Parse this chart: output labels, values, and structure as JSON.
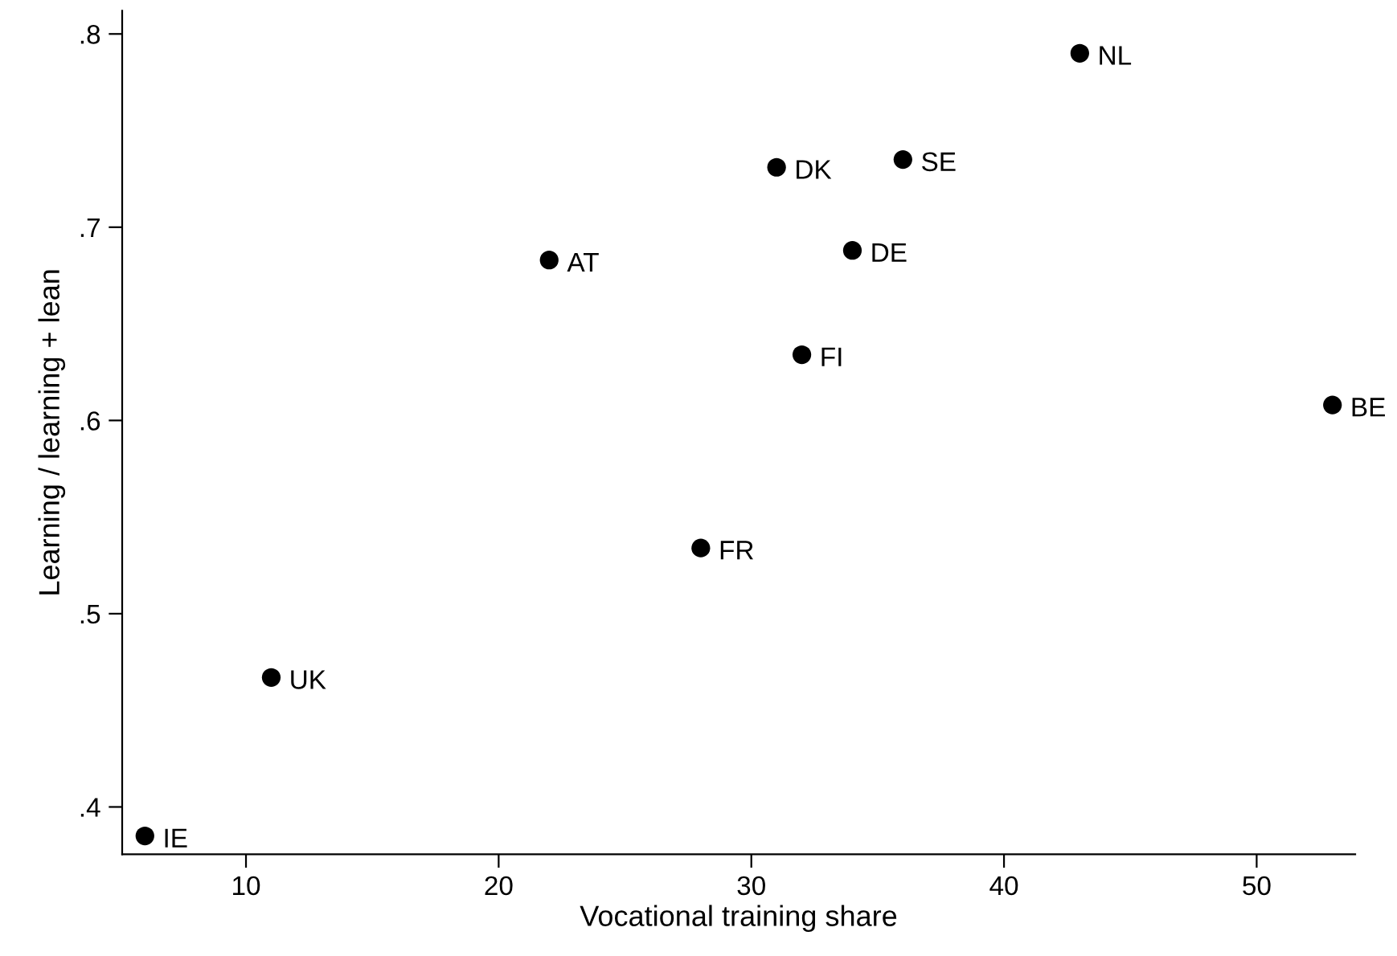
{
  "chart_data": {
    "type": "scatter",
    "xlabel": "Vocational training share",
    "ylabel": "Learning / learning + lean",
    "x": [
      6,
      11,
      22,
      31,
      32,
      34,
      36,
      43,
      53,
      28
    ],
    "values": [
      0.385,
      0.467,
      0.683,
      0.731,
      0.634,
      0.688,
      0.735,
      0.79,
      0.608,
      0.534
    ],
    "color": "#000000",
    "marker": "circle",
    "grid": false,
    "legend": false,
    "xlim": [
      5.1,
      53.9
    ],
    "xticks": [
      10,
      20,
      30,
      40,
      50
    ],
    "ylim": [
      0.3755,
      0.812
    ],
    "yticks": [
      {
        "value": 0.4,
        "label": ".4"
      },
      {
        "value": 0.5,
        "label": ".5"
      },
      {
        "value": 0.6,
        "label": ".6"
      },
      {
        "value": 0.7,
        "label": ".7"
      },
      {
        "value": 0.8,
        "label": ".8"
      }
    ],
    "annotations": [
      {
        "text": "IE",
        "x": 6,
        "y": 0.385
      },
      {
        "text": "UK",
        "x": 11,
        "y": 0.467
      },
      {
        "text": "AT",
        "x": 22,
        "y": 0.683
      },
      {
        "text": "DK",
        "x": 31,
        "y": 0.731
      },
      {
        "text": "FI",
        "x": 32,
        "y": 0.634
      },
      {
        "text": "DE",
        "x": 34,
        "y": 0.688
      },
      {
        "text": "SE",
        "x": 36,
        "y": 0.735
      },
      {
        "text": "NL",
        "x": 43,
        "y": 0.79
      },
      {
        "text": "BE",
        "x": 53,
        "y": 0.608
      },
      {
        "text": "FR",
        "x": 28,
        "y": 0.534
      }
    ]
  }
}
